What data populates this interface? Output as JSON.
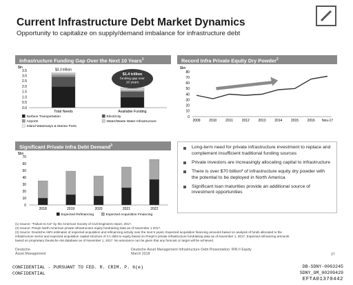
{
  "header": {
    "title": "Current Infrastructure Debt Market Dynamics",
    "subtitle": "Opportunity to capitalize on supply/demand imbalance for infrastructure debt"
  },
  "panels": {
    "gap": {
      "title": "Infrastructure Funding Gap Over the Next 10 Years",
      "sup": "1"
    },
    "dry": {
      "title": "Record Infra Private Equity Dry Powder",
      "sup": "2"
    },
    "demand": {
      "title": "Significant Private Infra Debt Demand",
      "sup": "3"
    }
  },
  "callout": {
    "line1": "$1.4 trillion",
    "line2": "funding gap over",
    "line3": "10 years"
  },
  "chart_data": [
    {
      "type": "bar",
      "title": "Infrastructure Funding Gap Over the Next 10 Years",
      "ylabel": "$tn",
      "ylim": [
        0,
        3.5
      ],
      "yticks": [
        "0.0",
        "0.5",
        "1.0",
        "1.5",
        "2.0",
        "2.5",
        "3.0",
        "3.5"
      ],
      "categories": [
        "Total Needs",
        "Available Funding"
      ],
      "data_labels": [
        "$3.3 trillion",
        "$1.9 trillion"
      ],
      "series": [
        {
          "name": "Surface Transportation",
          "values": [
            2.0,
            1.0
          ],
          "color": "#1e1e1e"
        },
        {
          "name": "Electricity",
          "values": [
            0.9,
            0.5
          ],
          "color": "#555555"
        },
        {
          "name": "Airports",
          "values": [
            0.2,
            0.1
          ],
          "color": "#9a9a9a"
        },
        {
          "name": "Water/Waste Water Infrastructure",
          "values": [
            0.1,
            0.2
          ],
          "color": "#cfcfcf"
        },
        {
          "name": "Inland Waterways & Marine Ports",
          "values": [
            0.1,
            0.1
          ],
          "color": "#ececec"
        }
      ],
      "legend": "bottom"
    },
    {
      "type": "line",
      "title": "Record Infra Private Equity Dry Powder",
      "ylabel": "$bn",
      "ylim": [
        0,
        80
      ],
      "yticks": [
        "0",
        "10",
        "20",
        "30",
        "40",
        "50",
        "60",
        "70",
        "80"
      ],
      "x": [
        "2009",
        "2010",
        "2011",
        "2012",
        "2013",
        "2014",
        "2015",
        "2016",
        "Nov-17"
      ],
      "series": [
        {
          "name": "Dry Powder",
          "values": [
            38,
            32,
            40,
            38,
            40,
            48,
            50,
            67,
            72
          ],
          "color": "#333333"
        }
      ]
    },
    {
      "type": "bar",
      "title": "Significant Private Infra Debt Demand",
      "ylabel": "$bn",
      "ylim": [
        0,
        70
      ],
      "yticks": [
        "0",
        "10",
        "20",
        "30",
        "40",
        "50",
        "60",
        "70"
      ],
      "categories": [
        "2018",
        "2019",
        "2020",
        "2021",
        "2022"
      ],
      "series": [
        {
          "name": "Expected Refinancing",
          "values": [
            10,
            15,
            13,
            25,
            37
          ],
          "color": "#222222"
        },
        {
          "name": "Expected Acquisition Financing",
          "values": [
            25,
            34,
            29,
            30,
            29
          ],
          "color": "#a8a8a8"
        }
      ],
      "legend": "bottom"
    }
  ],
  "bullets": [
    "Long-term need for private infrastructure investment to replace and complement insufficient traditional funding sources",
    "Private investors are increasingly allocating capital to infrastructure",
    "There is over $70 billion² of infrastructure equity dry powder with the potential to be deployed in North America",
    "Significant loan maturities provide an additional source of investment opportunities"
  ],
  "sources": [
    "(1) Source: \"Failure to Act\" by the American Society of Civil Engineers report, 2017.",
    "(2) Source: Preqin North American private infrastructure equity fundraising data as of November 1 2017.",
    "(3) Source: Deutsche AM's estimates of expected acquisition and refinancing activity over the next 5 years. Expected acquisition financing amounts based on analysis of funds allocated to the",
    "infrastructure sector and expected acquisition capital structure of 2:1 debt to equity based on Preqin's private infrastructure fundraising data as of November 1, 2017. Expected refinancing amounts",
    "based on proprietary Deutsche AM database as of November 1, 2017. No assurance can be given that any forecast or target will be achieved."
  ],
  "footer": {
    "brand1": "Deutsche",
    "brand2": "Asset Management",
    "presentation": "Deutsche Asset Management Infrastructure Debt Presentation: RIN II Equity",
    "date": "March 2018",
    "page": "27",
    "confidential1": "CONFIDENTIAL - PURSUANT TO FED. R. CRIM. P. 6(e)",
    "confidential2": "CONFIDENTIAL",
    "bates1": "DB-SDNY-0063245",
    "bates2": "SDNY_GM_00209429",
    "efta": "EFTA01370442"
  },
  "colors": {
    "panel_header": "#8a8a8a",
    "arrow": "#8a8a8a"
  }
}
